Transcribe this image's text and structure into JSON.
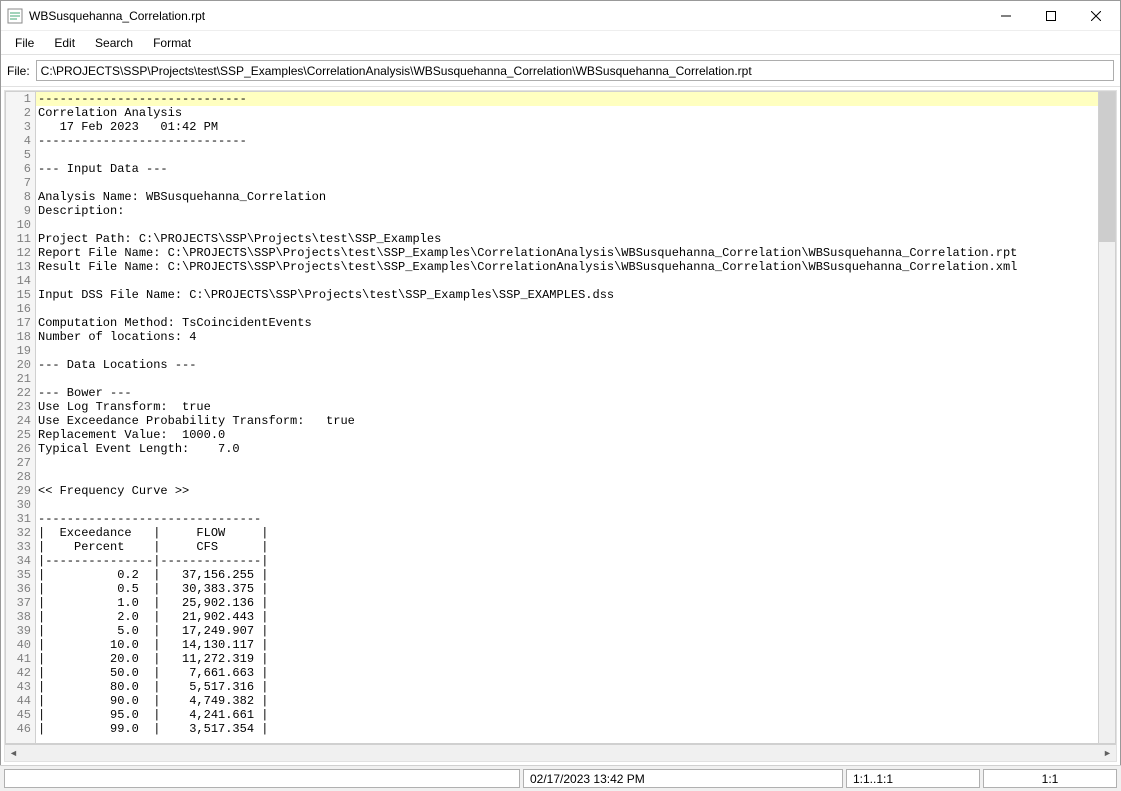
{
  "window": {
    "title": "WBSusquehanna_Correlation.rpt"
  },
  "menu": {
    "items": [
      "File",
      "Edit",
      "Search",
      "Format"
    ]
  },
  "filepath": {
    "label": "File:",
    "value": "C:\\PROJECTS\\SSP\\Projects\\test\\SSP_Examples\\CorrelationAnalysis\\WBSusquehanna_Correlation\\WBSusquehanna_Correlation.rpt"
  },
  "editor": {
    "highlighted_line": 1,
    "lines": [
      "-----------------------------",
      "Correlation Analysis",
      "   17 Feb 2023   01:42 PM",
      "-----------------------------",
      "",
      "--- Input Data ---",
      "",
      "Analysis Name: WBSusquehanna_Correlation",
      "Description: ",
      "",
      "Project Path: C:\\PROJECTS\\SSP\\Projects\\test\\SSP_Examples",
      "Report File Name: C:\\PROJECTS\\SSP\\Projects\\test\\SSP_Examples\\CorrelationAnalysis\\WBSusquehanna_Correlation\\WBSusquehanna_Correlation.rpt",
      "Result File Name: C:\\PROJECTS\\SSP\\Projects\\test\\SSP_Examples\\CorrelationAnalysis\\WBSusquehanna_Correlation\\WBSusquehanna_Correlation.xml",
      "",
      "Input DSS File Name: C:\\PROJECTS\\SSP\\Projects\\test\\SSP_Examples\\SSP_EXAMPLES.dss",
      "",
      "Computation Method: TsCoincidentEvents",
      "Number of locations: 4",
      "",
      "--- Data Locations ---",
      "",
      "--- Bower ---",
      "Use Log Transform:  true",
      "Use Exceedance Probability Transform:   true",
      "Replacement Value:  1000.0",
      "Typical Event Length:    7.0",
      "",
      "",
      "<< Frequency Curve >>",
      "",
      "-------------------------------",
      "|  Exceedance   |     FLOW     |",
      "|    Percent    |     CFS      |",
      "|---------------|--------------|",
      "|          0.2  |   37,156.255 |",
      "|          0.5  |   30,383.375 |",
      "|          1.0  |   25,902.136 |",
      "|          2.0  |   21,902.443 |",
      "|          5.0  |   17,249.907 |",
      "|         10.0  |   14,130.117 |",
      "|         20.0  |   11,272.319 |",
      "|         50.0  |    7,661.663 |",
      "|         80.0  |    5,517.316 |",
      "|         90.0  |    4,749.382 |",
      "|         95.0  |    4,241.661 |",
      "|         99.0  |    3,517.354 |"
    ]
  },
  "statusbar": {
    "cell1": "",
    "cell2": "02/17/2023 13:42 PM",
    "cell3": "1:1..1:1",
    "cell4": "1:1"
  },
  "colors": {
    "highlight_bg": "#ffffc0",
    "gutter_bg": "#f5f5f5",
    "gutter_text": "#808080"
  }
}
